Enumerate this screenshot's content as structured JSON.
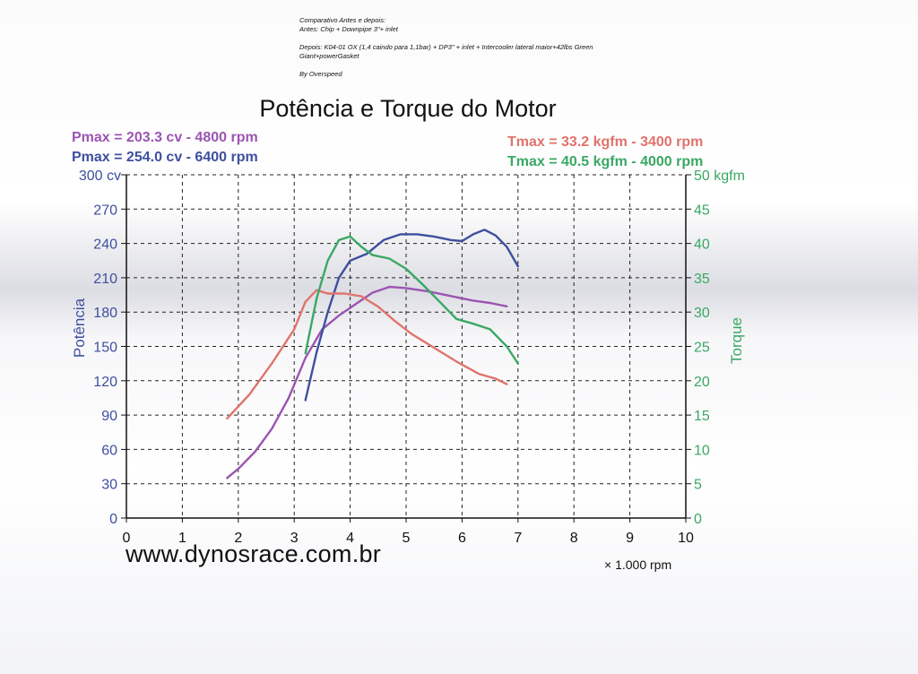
{
  "note": {
    "lines": [
      "Comparativo Antes e depois:",
      "Antes: Chip + Downpipe 3\"+ inlet",
      "",
      "Depois: K04-01 OX (1,4 caindo para 1,1bar) + DP3\" + inlet + Intercooler lateral maior+42lbs Green",
      "Giant+powerGasket",
      "",
      "By Overspeed"
    ]
  },
  "chart_data": {
    "type": "line",
    "title": "Potência e Torque do Motor",
    "xlabel": "× 1.000 rpm",
    "ylabel": "Potência",
    "y2label": "Torque",
    "xlim": [
      0,
      10
    ],
    "ylim": [
      0,
      300
    ],
    "y2lim": [
      0,
      50
    ],
    "x_ticks": [
      "0",
      "1",
      "2",
      "3",
      "4",
      "5",
      "6",
      "7",
      "8",
      "9",
      "10"
    ],
    "y_ticks": [
      "0",
      "30",
      "60",
      "90",
      "120",
      "150",
      "180",
      "210",
      "240",
      "270",
      "300 cv"
    ],
    "y2_ticks": [
      "0",
      "5",
      "10",
      "15",
      "20",
      "25",
      "30",
      "35",
      "40",
      "45",
      "50 kgfm"
    ],
    "grid": true,
    "legend_left": [
      {
        "text": "Pmax = 203.3 cv - 4800 rpm",
        "color": "#9b55b1"
      },
      {
        "text": "Pmax = 254.0 cv - 6400 rpm",
        "color": "#3e4f9f"
      }
    ],
    "legend_right": [
      {
        "text": "Tmax = 33.2 kgfm - 3400 rpm",
        "color": "#e0736b"
      },
      {
        "text": "Tmax = 40.5 kgfm - 4000 rpm",
        "color": "#3aa864"
      }
    ],
    "series": [
      {
        "color": "#9b55b1",
        "axis": "left",
        "x": [
          1.8,
          2.0,
          2.3,
          2.6,
          2.9,
          3.2,
          3.5,
          3.8,
          4.1,
          4.4,
          4.7,
          5.0,
          5.4,
          5.8,
          6.2,
          6.5,
          6.8
        ],
        "values": [
          35,
          43,
          58,
          78,
          105,
          140,
          165,
          177,
          187,
          197,
          202,
          201,
          198,
          194,
          190,
          188,
          185
        ]
      },
      {
        "color": "#3e4f9f",
        "axis": "left",
        "x": [
          3.2,
          3.4,
          3.6,
          3.8,
          4.0,
          4.3,
          4.6,
          4.9,
          5.2,
          5.5,
          5.8,
          6.0,
          6.2,
          6.4,
          6.6,
          6.8,
          7.0
        ],
        "values": [
          103,
          145,
          180,
          210,
          225,
          231,
          243,
          248,
          248,
          246,
          243,
          242,
          248,
          252,
          247,
          237,
          220
        ]
      },
      {
        "color": "#e0736b",
        "axis": "right",
        "x": [
          1.8,
          2.2,
          2.6,
          3.0,
          3.2,
          3.4,
          3.6,
          3.9,
          4.2,
          4.5,
          4.8,
          5.1,
          5.5,
          5.9,
          6.3,
          6.6,
          6.8
        ],
        "values": [
          14.5,
          18.0,
          22.5,
          27.5,
          31.5,
          33.2,
          32.7,
          32.7,
          32.3,
          30.8,
          28.7,
          26.8,
          24.8,
          22.8,
          21.0,
          20.3,
          19.5
        ]
      },
      {
        "color": "#3aa864",
        "axis": "right",
        "x": [
          3.2,
          3.4,
          3.6,
          3.8,
          4.0,
          4.2,
          4.4,
          4.7,
          5.0,
          5.3,
          5.6,
          5.9,
          6.2,
          6.5,
          6.8,
          7.0
        ],
        "values": [
          24.0,
          32.0,
          37.5,
          40.5,
          41.0,
          39.5,
          38.3,
          37.8,
          36.3,
          34.0,
          31.5,
          29.0,
          28.3,
          27.5,
          25.0,
          22.5
        ]
      }
    ]
  },
  "footer": {
    "url": "www.dynosrace.com.br"
  }
}
